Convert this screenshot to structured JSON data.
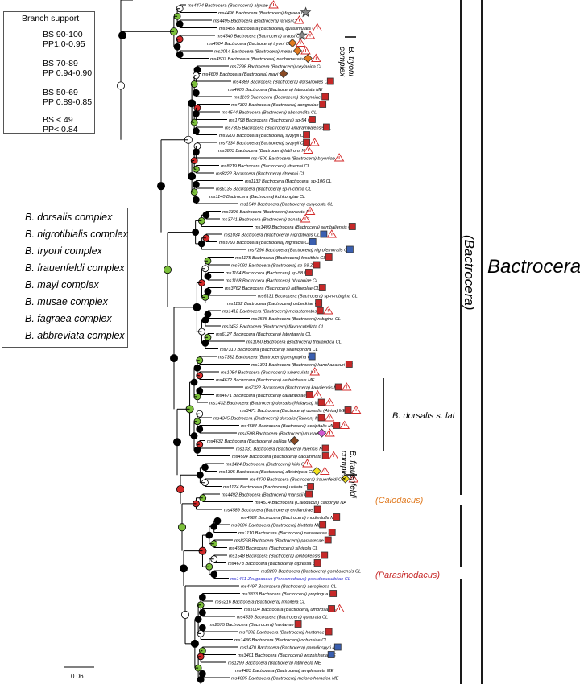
{
  "branch_support": {
    "title": "Branch support",
    "items": [
      {
        "fill": "#000000",
        "line1": "BS 90-100",
        "line2": "PP1.0-0.95"
      },
      {
        "fill": "#7bbf3a",
        "line1": "BS 70-89",
        "line2": "PP 0.94-0.90"
      },
      {
        "fill": "#d32a2a",
        "line1": "BS 50-69",
        "line2": "PP 0.89-0.85"
      },
      {
        "fill": "#ffffff",
        "line1": "BS < 49",
        "line2": "PP< 0.84"
      }
    ]
  },
  "complexes": [
    {
      "label": "B. dorsalis complex",
      "icon": "square",
      "color": "#c62828"
    },
    {
      "label": "B. nigrotibialis complex",
      "icon": "square",
      "color": "#3a5fb0"
    },
    {
      "label": "B. tryoni complex",
      "icon": "diamond",
      "color": "#e07b22"
    },
    {
      "label": "B. frauenfeldi complex",
      "icon": "diamond",
      "color": "#f2e21c"
    },
    {
      "label": "B. mayi complex",
      "icon": "diamond",
      "color": "#8a4a24"
    },
    {
      "label": "B. musae complex",
      "icon": "diamond",
      "color": "#d05ad0"
    },
    {
      "label": "B. fagraea complex",
      "icon": "star",
      "color": "#8a8a8a"
    },
    {
      "label": "B. abbreviata complex",
      "icon": "star",
      "color": "#000000"
    }
  ],
  "group_labels": {
    "tryoni": [
      "B. tryoni",
      "complex"
    ],
    "frauenfeldi": [
      "B. frauenfeldi",
      "complex"
    ],
    "dorsalis_sl": "B. dorsalis s. lat",
    "calodacus": "(Calodacus)",
    "parasinodacus": "(Parasinodacus)",
    "bactrocera_sub": "(Bactrocera)",
    "genus": "Bactrocera"
  },
  "scale_bar": "0.06",
  "taxa": [
    {
      "label": "ms4474 Bactrocera (Bactrocera) alyxiae CL",
      "marks": [
        "warn"
      ]
    },
    {
      "label": "ms4496 Bactrocera (Bactrocera) fagraea CL",
      "marks": [
        "sgrey"
      ]
    },
    {
      "label": "ms4495 Bactrocera (Bactrocera) jarvisi CL",
      "marks": [
        "warn"
      ]
    },
    {
      "label": "ms3455 Bactrocera (Bactrocera) quasiinfulata CL",
      "marks": [
        "warn"
      ]
    },
    {
      "label": "ms4540 Bactrocera (Bactrocera) krausi CL",
      "marks": [
        "sgrey",
        "warn"
      ]
    },
    {
      "label": "ms4504 Bactrocera (Bactrocera) tryoni CL",
      "marks": [
        "dorange",
        "warn"
      ]
    },
    {
      "label": "ms2014 Bactrocera (Bactrocera) melas CL",
      "marks": [
        "dorange",
        "warn"
      ]
    },
    {
      "label": "ms4507 Bactrocera (Bactrocera) neohumeralis CL",
      "marks": [
        "dorange",
        "warn"
      ]
    },
    {
      "label": "ms7298 Bactrocera (Bactrocera) ceylanica CL",
      "marks": []
    },
    {
      "label": "ms4609 Bactrocera (Bactrocera) mayi ME",
      "marks": [
        "dbrown"
      ]
    },
    {
      "label": "ms4389 Bactrocera (Bactrocera) dorsalioides CL",
      "marks": [
        "sred"
      ]
    },
    {
      "label": "ms4606 Bactrocera (Bactrocera) latiscutata ME",
      "marks": []
    },
    {
      "label": "ms1109 Bactrocera (Bactrocera) dongnaiae CL",
      "marks": [
        "sred"
      ]
    },
    {
      "label": "ms7303 Bactrocera (Bactrocera) dongnaiae CL",
      "marks": [
        "sred"
      ]
    },
    {
      "label": "ms4544 Bactrocera (Bactrocera) abscondita CL",
      "marks": []
    },
    {
      "label": "ms1798 Bactrocera (Bactrocera) sp-54 CL",
      "marks": [
        "sred"
      ]
    },
    {
      "label": "ms7305 Bactrocera (Bactrocera) amarambalensis CL",
      "marks": [
        "sred"
      ]
    },
    {
      "label": "ms9203 Bactrocera (Bactrocera) syzygii CL",
      "marks": [
        "sred"
      ]
    },
    {
      "label": "ms7334 Bactrocera (Bactrocera) syzygii CL",
      "marks": [
        "sred",
        "warn"
      ]
    },
    {
      "label": "ms3803 Bactrocera (Bactrocera) latifrons NA",
      "marks": [
        "warn"
      ]
    },
    {
      "label": "ms4500 Bactrocera (Bactrocera) bryoniae CL",
      "marks": [
        "warn"
      ]
    },
    {
      "label": "ms8219 Bactrocera (Bactrocera) ritsemai CL",
      "marks": []
    },
    {
      "label": "ms8222 Bactrocera (Bactrocera) ritsemai CL",
      "marks": []
    },
    {
      "label": "ms1132 Bactrocera (Bactrocera) sp-106 CL",
      "marks": []
    },
    {
      "label": "ms6135 Bactrocera (Bactrocera) sp-n-citima CL",
      "marks": []
    },
    {
      "label": "ms1140 Bactrocera (Bactrocera) kohkongiae CL",
      "marks": []
    },
    {
      "label": "ms1549 Bactrocera (Bactrocera) eurycosta CL",
      "marks": []
    },
    {
      "label": "ms3396 Bactrocera (Bactrocera) correcta ME",
      "marks": [
        "warn"
      ]
    },
    {
      "label": "ms3741 Bactrocera (Bactrocera) zonata ME",
      "marks": [
        "warn"
      ]
    },
    {
      "label": "ms1409 Bactrocera (Bactrocera) sembaliensis CL",
      "marks": [
        "sred"
      ]
    },
    {
      "label": "ms1034 Bactrocera (Bactrocera) nigrotibialis CL",
      "marks": [
        "sblue",
        "warn"
      ]
    },
    {
      "label": "ms3793 Bactrocera (Bactrocera) nigrifacia CL",
      "marks": [
        "sblue"
      ]
    },
    {
      "label": "ms7296 Bactrocera (Bactrocera) nigrofemoralis CL",
      "marks": [
        "sblue"
      ]
    },
    {
      "label": "ms1175 Bactrocera (Bactrocera) fuscitibia CL",
      "marks": [
        "sred"
      ]
    },
    {
      "label": "ms6092 Bactrocera (Bactrocera) sp-69 Zin",
      "marks": [
        "sred"
      ]
    },
    {
      "label": "ms1164 Bactrocera (Bactrocera) sp-58 CL",
      "marks": [
        "sred"
      ]
    },
    {
      "label": "ms1168 Bactrocera (Bactrocera) bhutaniae CL",
      "marks": []
    },
    {
      "label": "ms3762 Bactrocera (Bactrocera) latilineolae CL",
      "marks": [
        "sred"
      ]
    },
    {
      "label": "ms6131 Bactrocera (Bactrocera) sp-n-rubigina CL",
      "marks": []
    },
    {
      "label": "ms1162 Bactrocera (Bactrocera) osbeckiae CL",
      "marks": [
        "sred"
      ]
    },
    {
      "label": "ms1412 Bactrocera (Bactrocera) melastomatos CL",
      "marks": [
        "sred",
        "warn"
      ]
    },
    {
      "label": "ms3545 Bactrocera (Bactrocera) rubigina CL",
      "marks": []
    },
    {
      "label": "ms3452 Bactrocera (Bactrocera) flavoscutellata CL",
      "marks": []
    },
    {
      "label": "ms6127 Bactrocera (Bactrocera) lateritaenia CL",
      "marks": []
    },
    {
      "label": "ms1050 Bactrocera (Bactrocera) thailandica CL",
      "marks": []
    },
    {
      "label": "ms7310 Bactrocera (Bactrocera) selenophora CL",
      "marks": []
    },
    {
      "label": "ms7332 Bactrocera (Bactrocera) perigrapha CL",
      "marks": [
        "sblue"
      ]
    },
    {
      "label": "ms1301 Bactrocera (Bactrocera) kanchanaburi ME",
      "marks": [
        "sred"
      ]
    },
    {
      "label": "ms1084 Bactrocera (Bactrocera) tuberculata ME",
      "marks": [
        "warn"
      ]
    },
    {
      "label": "ms4672 Bactrocera (Bactrocera) aethriobasis ME",
      "marks": []
    },
    {
      "label": "ms7322 Bactrocera (Bactrocera) kandiensis ME",
      "marks": [
        "sred",
        "warn"
      ]
    },
    {
      "label": "ms4671 Bactrocera (Bactrocera) carambolae ME",
      "marks": [
        "sred",
        "warn"
      ]
    },
    {
      "label": "ms1432 Bactrocera (Bactrocera) dorsalis (Malaysia) ME",
      "marks": [
        "sred",
        "warn"
      ]
    },
    {
      "label": "ms3471 Bactrocera (Bactrocera) dorsalis (Africa) ME",
      "marks": [
        "sred",
        "warn"
      ]
    },
    {
      "label": "ms4345 Bactrocera (Bactrocera) dorsalis (Taiwan) ME",
      "marks": [
        "sred",
        "warn"
      ]
    },
    {
      "label": "ms4584 Bactrocera (Bactrocera) occipitalis ME",
      "marks": [
        "sred",
        "warn"
      ]
    },
    {
      "label": "ms4598 Bactrocera (Bactrocera) musae ME",
      "marks": [
        "dpink",
        "warn"
      ]
    },
    {
      "label": "ms4632 Bactrocera (Bactrocera) pallida ME",
      "marks": [
        "dbrown"
      ]
    },
    {
      "label": "ms1331 Bactrocera (Bactrocera) raiensis ME",
      "marks": [
        "sred"
      ]
    },
    {
      "label": "ms4594 Bactrocera (Bactrocera) cacuminata ME",
      "marks": [
        "sred",
        "warn"
      ]
    },
    {
      "label": "ms1424 Bactrocera (Bactrocera) kirki CL",
      "marks": [
        "warn"
      ]
    },
    {
      "label": "ms1395 Bactrocera (Bactrocera) albistrigata CL",
      "marks": [
        "dyellow",
        "warn"
      ]
    },
    {
      "label": "ms4470 Bactrocera (Bactrocera) frauenfeldi CL",
      "marks": [
        "dyellow",
        "warn"
      ]
    },
    {
      "label": "ms1174 Bactrocera (Bactrocera) usitata CL",
      "marks": [
        "sred"
      ]
    },
    {
      "label": "ms4492 Bactrocera (Bactrocera) manskii CL",
      "marks": [
        "sred"
      ]
    },
    {
      "label": "ms4514 Bactrocera (Calodacus) calophylli NA",
      "marks": []
    },
    {
      "label": "ms4589 Bactrocera (Bactrocera) endiandrae ME",
      "marks": [
        "sred"
      ]
    },
    {
      "label": "ms4582 Bactrocera (Bactrocera) moderitulla ME",
      "marks": [
        "sred"
      ]
    },
    {
      "label": "ms3606 Bactrocera (Bactrocera) bivittata ME",
      "marks": [
        "sred"
      ]
    },
    {
      "label": "ms1110 Bactrocera (Bactrocera) paraarecae ME",
      "marks": [
        "sred"
      ]
    },
    {
      "label": "ms8268 Bactrocera (Bactrocera) paraarecae ME",
      "marks": [
        "sred"
      ]
    },
    {
      "label": "ms4550 Bactrocera (Bactrocera) silvicola CL",
      "marks": []
    },
    {
      "label": "ms1548 Bactrocera (Bactrocera) lombokensis CL",
      "marks": [
        "sred"
      ]
    },
    {
      "label": "ms4673 Bactrocera (Bactrocera) dipressa CL",
      "marks": [
        "sred"
      ]
    },
    {
      "label": "ms8209 Bactrocera (Bactrocera) gombokensis CL",
      "marks": []
    },
    {
      "label": "ms1461 Zeugodacus (Parasinodacus) pseudocucurbitae CL",
      "marks": [],
      "color": "#2b2bd0"
    },
    {
      "label": "ms4497 Bactrocera (Bactrocera) aeroginosa CL",
      "marks": []
    },
    {
      "label": "ms3833 Bactrocera (Bactrocera) propinqua CL",
      "marks": [
        "sred"
      ]
    },
    {
      "label": "ms6216 Bactrocera (Bactrocera) limbifera CL",
      "marks": []
    },
    {
      "label": "ms1004 Bactrocera (Bactrocera) umbrosa ME",
      "marks": [
        "sred",
        "warn"
      ]
    },
    {
      "label": "ms4539 Bactrocera (Bactrocera) quadrata CL",
      "marks": []
    },
    {
      "label": "ms2575 Bactrocera (Bactrocera) hantanae CL",
      "marks": [
        "sred"
      ]
    },
    {
      "label": "ms7302 Bactrocera (Bactrocera) hantanae CL",
      "marks": [
        "sred"
      ]
    },
    {
      "label": "ms1486 Bactrocera (Bactrocera) ochrosiae CL",
      "marks": []
    },
    {
      "label": "ms1470 Bactrocera (Bactrocera) paradiospyri ME",
      "marks": [
        "sblue"
      ]
    },
    {
      "label": "ms3401 Bactrocera (Bactrocera) wuzhishana ME",
      "marks": [
        "sblue"
      ]
    },
    {
      "label": "ms1299 Bactrocera (Bactrocera) latilineola ME",
      "marks": []
    },
    {
      "label": "ms4483 Bactrocera (Bactrocera) amplexiseta ME",
      "marks": []
    },
    {
      "label": "ms4605 Bactrocera (Bactrocera) melonothoracica ME",
      "marks": []
    }
  ]
}
